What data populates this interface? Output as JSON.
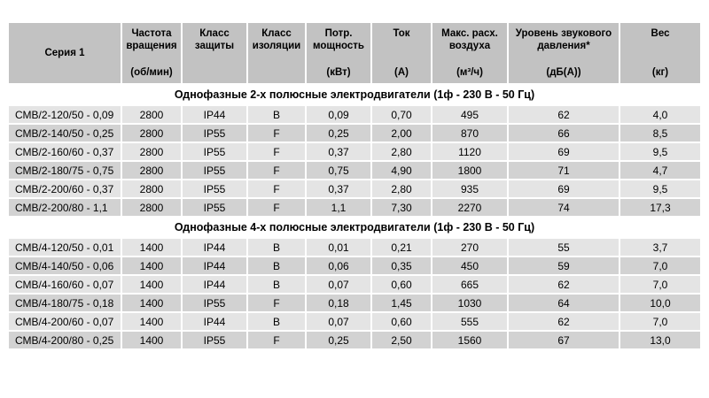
{
  "table": {
    "colors": {
      "header_bg": "#c2c2c2",
      "row_light_bg": "#e4e4e4",
      "row_dark_bg": "#d2d2d2",
      "section_bg": "#ffffff",
      "text": "#000000"
    },
    "columns": [
      {
        "label": "Серия 1",
        "unit": ""
      },
      {
        "label": "Частота вращения",
        "unit": "(об/мин)"
      },
      {
        "label": "Класс защиты",
        "unit": ""
      },
      {
        "label": "Класс изоляции",
        "unit": ""
      },
      {
        "label": "Потр. мощность",
        "unit": "(кВт)"
      },
      {
        "label": "Ток",
        "unit": "(А)"
      },
      {
        "label": "Макс. расх. воздуха",
        "unit": "(м³/ч)"
      },
      {
        "label": "Уровень звукового давления*",
        "unit": "(дБ(А))"
      },
      {
        "label": "Вес",
        "unit": "(кг)"
      }
    ],
    "sections": [
      {
        "title": "Однофазные 2-х полюсные электродвигатели (1ф - 230 В - 50 Гц)",
        "rows": [
          [
            "СМВ/2-120/50 - 0,09",
            "2800",
            "IP44",
            "B",
            "0,09",
            "0,70",
            "495",
            "62",
            "4,0"
          ],
          [
            "СМВ/2-140/50 - 0,25",
            "2800",
            "IP55",
            "F",
            "0,25",
            "2,00",
            "870",
            "66",
            "8,5"
          ],
          [
            "СМВ/2-160/60 - 0,37",
            "2800",
            "IP55",
            "F",
            "0,37",
            "2,80",
            "1120",
            "69",
            "9,5"
          ],
          [
            "СМВ/2-180/75 - 0,75",
            "2800",
            "IP55",
            "F",
            "0,75",
            "4,90",
            "1800",
            "71",
            "4,7"
          ],
          [
            "СМВ/2-200/60 - 0,37",
            "2800",
            "IP55",
            "F",
            "0,37",
            "2,80",
            "935",
            "69",
            "9,5"
          ],
          [
            "СМВ/2-200/80 - 1,1",
            "2800",
            "IP55",
            "F",
            "1,1",
            "7,30",
            "2270",
            "74",
            "17,3"
          ]
        ]
      },
      {
        "title": "Однофазные 4-х полюсные электродвигатели (1ф - 230 В - 50 Гц)",
        "rows": [
          [
            "СМВ/4-120/50 - 0,01",
            "1400",
            "IP44",
            "B",
            "0,01",
            "0,21",
            "270",
            "55",
            "3,7"
          ],
          [
            "СМВ/4-140/50 - 0,06",
            "1400",
            "IP44",
            "B",
            "0,06",
            "0,35",
            "450",
            "59",
            "7,0"
          ],
          [
            "СМВ/4-160/60 - 0,07",
            "1400",
            "IP44",
            "B",
            "0,07",
            "0,60",
            "665",
            "62",
            "7,0"
          ],
          [
            "СМВ/4-180/75 - 0,18",
            "1400",
            "IP55",
            "F",
            "0,18",
            "1,45",
            "1030",
            "64",
            "10,0"
          ],
          [
            "СМВ/4-200/60 - 0,07",
            "1400",
            "IP44",
            "B",
            "0,07",
            "0,60",
            "555",
            "62",
            "7,0"
          ],
          [
            "СМВ/4-200/80 - 0,25",
            "1400",
            "IP55",
            "F",
            "0,25",
            "2,50",
            "1560",
            "67",
            "13,0"
          ]
        ]
      }
    ]
  }
}
